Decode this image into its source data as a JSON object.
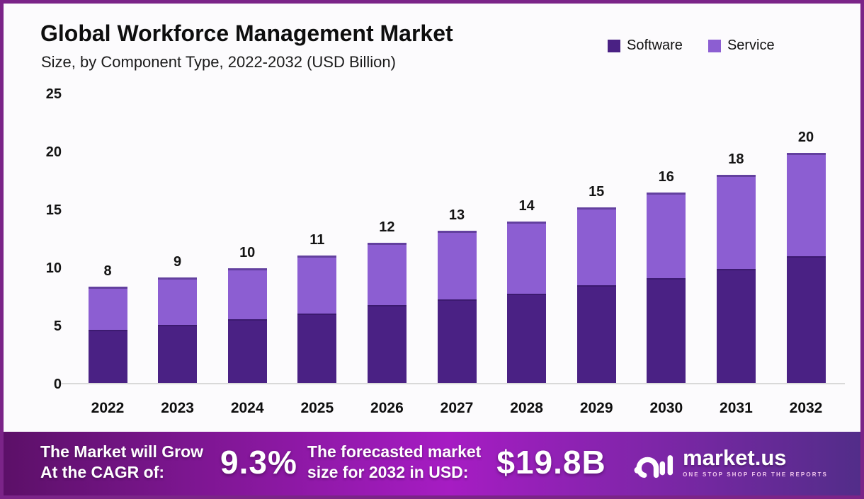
{
  "header": {
    "title": "Global Workforce Management Market",
    "subtitle": "Size, by Component Type, 2022-2032 (USD Billion)"
  },
  "chart_data": {
    "type": "bar",
    "stacked": true,
    "title": "Global Workforce Management Market",
    "subtitle": "Size, by Component Type, 2022-2032 (USD Billion)",
    "unit": "USD Billion",
    "categories": [
      "2022",
      "2023",
      "2024",
      "2025",
      "2026",
      "2027",
      "2028",
      "2029",
      "2030",
      "2031",
      "2032"
    ],
    "series": [
      {
        "name": "Software",
        "color": "#4a2184",
        "values": [
          4.6,
          5.0,
          5.5,
          6.0,
          6.7,
          7.2,
          7.7,
          8.4,
          9.0,
          9.8,
          10.9
        ]
      },
      {
        "name": "Service",
        "color": "#8c5ed2",
        "values": [
          3.7,
          4.1,
          4.4,
          5.0,
          5.4,
          5.9,
          6.2,
          6.7,
          7.4,
          8.1,
          8.9
        ]
      }
    ],
    "totals": [
      8.3,
      9.1,
      9.9,
      11.0,
      12.1,
      13.1,
      13.9,
      15.1,
      16.4,
      17.9,
      19.8
    ],
    "total_labels": [
      "8",
      "9",
      "10",
      "11",
      "12",
      "13",
      "14",
      "15",
      "16",
      "18",
      "20"
    ],
    "y_ticks": [
      0,
      5,
      10,
      15,
      20,
      25
    ],
    "ylim": [
      0,
      25
    ],
    "grid": false,
    "legend_position": "top-right"
  },
  "banner": {
    "cagr_line1": "The Market will Grow",
    "cagr_line2": "At the CAGR of:",
    "cagr_value": "9.3%",
    "forecast_line1": "The forecasted market",
    "forecast_line2": "size for 2032 in USD:",
    "forecast_value": "$19.8B",
    "logo_text": "market.us",
    "logo_tagline": "ONE STOP SHOP FOR THE REPORTS"
  },
  "colors": {
    "software": "#4a2184",
    "service": "#8c5ed2",
    "border": "#7b2488",
    "background": "#fcfbfd",
    "banner_gradient_left": "#5c1068",
    "banner_gradient_mid": "#a61cc3",
    "banner_gradient_right": "#522d89"
  }
}
